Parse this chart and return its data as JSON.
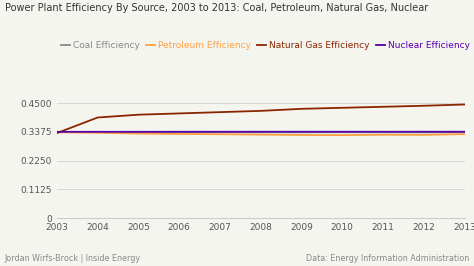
{
  "title": "Power Plant Efficiency By Source, 2003 to 2013: Coal, Petroleum, Natural Gas, Nuclear",
  "years": [
    2003,
    2004,
    2005,
    2006,
    2007,
    2008,
    2009,
    2010,
    2011,
    2012,
    2013
  ],
  "coal": [
    0.3375,
    0.3375,
    0.337,
    0.3368,
    0.3365,
    0.3362,
    0.336,
    0.3363,
    0.3362,
    0.336,
    0.336
  ],
  "petroleum": [
    0.336,
    0.334,
    0.331,
    0.3295,
    0.3285,
    0.327,
    0.3255,
    0.325,
    0.3265,
    0.326,
    0.329
  ],
  "natural_gas": [
    0.333,
    0.394,
    0.405,
    0.41,
    0.415,
    0.42,
    0.428,
    0.432,
    0.436,
    0.44,
    0.445
  ],
  "nuclear": [
    0.338,
    0.338,
    0.338,
    0.3382,
    0.3382,
    0.3383,
    0.3383,
    0.3383,
    0.3382,
    0.3383,
    0.3383
  ],
  "coal_color": "#888888",
  "petroleum_color": "#FFA040",
  "natural_gas_color": "#8B2500",
  "nuclear_color": "#5500AA",
  "coal_label": "Coal Efficiency",
  "petroleum_label": "Petroleum Efficiency",
  "natural_gas_label": "Natural Gas Efficiency",
  "nuclear_label": "Nuclear Efficiency",
  "ylim": [
    0,
    0.5
  ],
  "yticks": [
    0,
    0.1125,
    0.225,
    0.3375,
    0.45
  ],
  "ytick_labels": [
    "0",
    "0.1125",
    "0.2250",
    "0.3375",
    "0.4500"
  ],
  "footer_left": "Jordan Wirfs-Brock | Inside Energy",
  "footer_right": "Data: Energy Information Administration",
  "bg_color": "#f5f5f0",
  "grid_color": "#cccccc",
  "title_fontsize": 7.0,
  "legend_fontsize": 6.5,
  "tick_fontsize": 6.5,
  "footer_fontsize": 5.8,
  "line_width": 1.3
}
